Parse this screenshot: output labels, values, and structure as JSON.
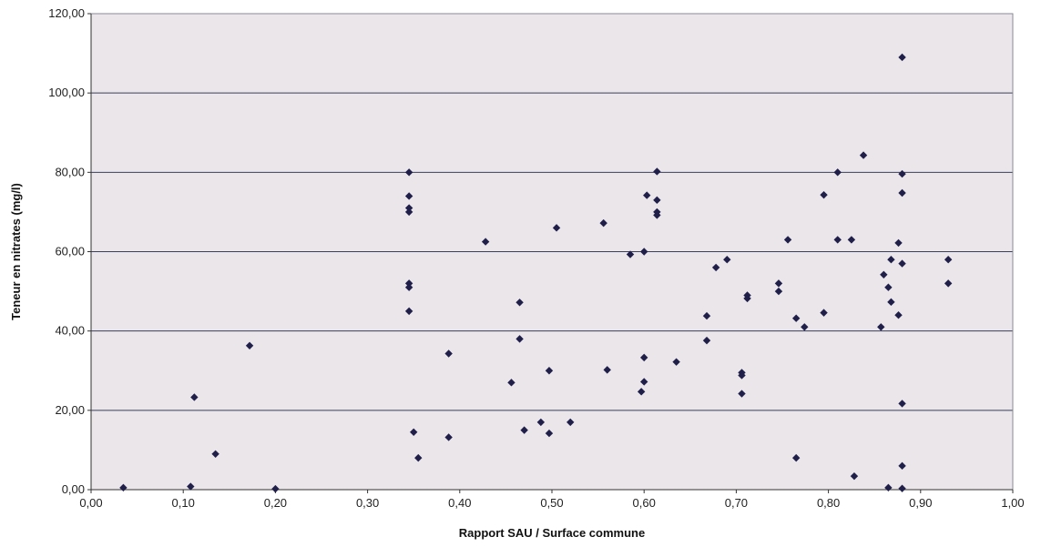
{
  "chart_data": {
    "type": "scatter",
    "title": "",
    "xlabel": "Rapport SAU / Surface commune",
    "ylabel": "Teneur en nitrates (mg/l)",
    "xlim": [
      0,
      1
    ],
    "ylim": [
      0,
      120
    ],
    "x_ticks": [
      "0,00",
      "0,10",
      "0,20",
      "0,30",
      "0,40",
      "0,50",
      "0,60",
      "0,70",
      "0,80",
      "0,90",
      "1,00"
    ],
    "y_ticks": [
      "0,00",
      "20,00",
      "40,00",
      "60,00",
      "80,00",
      "100,00",
      "120,00"
    ],
    "grid": "horizontal",
    "legend": "none",
    "marker_color": "#1f1f4a",
    "plot_background": "#ebe6ea",
    "gridline_color": "#3a3f5a",
    "points": [
      [
        0.035,
        0.5
      ],
      [
        0.108,
        0.8
      ],
      [
        0.112,
        23.3
      ],
      [
        0.135,
        9.0
      ],
      [
        0.172,
        36.3
      ],
      [
        0.2,
        0.2
      ],
      [
        0.345,
        80.0
      ],
      [
        0.345,
        74.0
      ],
      [
        0.345,
        71.0
      ],
      [
        0.345,
        70.0
      ],
      [
        0.345,
        52.0
      ],
      [
        0.345,
        51.0
      ],
      [
        0.345,
        45.0
      ],
      [
        0.35,
        14.5
      ],
      [
        0.355,
        8.0
      ],
      [
        0.388,
        34.3
      ],
      [
        0.388,
        13.2
      ],
      [
        0.428,
        62.5
      ],
      [
        0.456,
        27.0
      ],
      [
        0.465,
        47.2
      ],
      [
        0.465,
        38.0
      ],
      [
        0.47,
        15.0
      ],
      [
        0.488,
        17.0
      ],
      [
        0.497,
        30.0
      ],
      [
        0.497,
        14.2
      ],
      [
        0.505,
        66.0
      ],
      [
        0.52,
        17.0
      ],
      [
        0.556,
        67.2
      ],
      [
        0.56,
        30.2
      ],
      [
        0.585,
        59.3
      ],
      [
        0.597,
        24.7
      ],
      [
        0.6,
        60.0
      ],
      [
        0.6,
        33.3
      ],
      [
        0.6,
        27.2
      ],
      [
        0.603,
        74.2
      ],
      [
        0.614,
        80.2
      ],
      [
        0.614,
        73.0
      ],
      [
        0.614,
        70.0
      ],
      [
        0.614,
        69.2
      ],
      [
        0.635,
        32.2
      ],
      [
        0.668,
        43.8
      ],
      [
        0.668,
        37.6
      ],
      [
        0.678,
        56.0
      ],
      [
        0.69,
        58.0
      ],
      [
        0.706,
        29.5
      ],
      [
        0.706,
        28.8
      ],
      [
        0.706,
        24.2
      ],
      [
        0.712,
        49.0
      ],
      [
        0.712,
        48.2
      ],
      [
        0.746,
        52.0
      ],
      [
        0.746,
        50.0
      ],
      [
        0.756,
        63.0
      ],
      [
        0.765,
        43.2
      ],
      [
        0.765,
        8.0
      ],
      [
        0.774,
        41.0
      ],
      [
        0.795,
        74.3
      ],
      [
        0.795,
        44.6
      ],
      [
        0.81,
        80.0
      ],
      [
        0.81,
        63.0
      ],
      [
        0.825,
        63.0
      ],
      [
        0.828,
        3.4
      ],
      [
        0.838,
        84.3
      ],
      [
        0.857,
        41.0
      ],
      [
        0.86,
        54.2
      ],
      [
        0.865,
        51.0
      ],
      [
        0.865,
        0.5
      ],
      [
        0.868,
        58.0
      ],
      [
        0.868,
        47.3
      ],
      [
        0.876,
        62.2
      ],
      [
        0.876,
        44.0
      ],
      [
        0.88,
        109.0
      ],
      [
        0.88,
        79.6
      ],
      [
        0.88,
        74.8
      ],
      [
        0.88,
        57.0
      ],
      [
        0.88,
        21.7
      ],
      [
        0.88,
        6.0
      ],
      [
        0.88,
        0.3
      ],
      [
        0.93,
        58.0
      ],
      [
        0.93,
        52.0
      ]
    ]
  }
}
